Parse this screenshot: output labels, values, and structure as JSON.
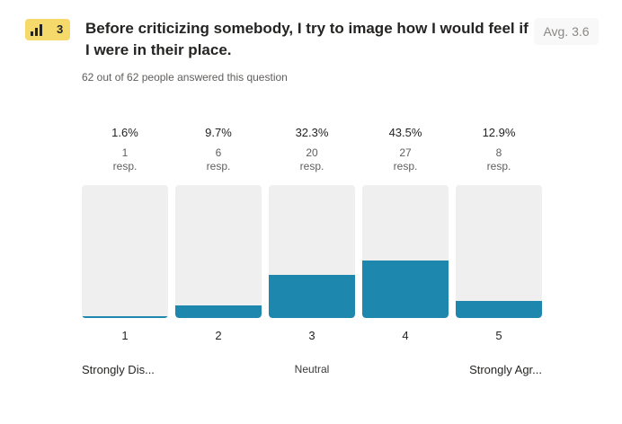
{
  "question": {
    "number": "3",
    "title": "Before criticizing somebody, I try to image how I would feel if I were in their place.",
    "average": "Avg. 3.6",
    "answered": "62 out of 62 people answered this question",
    "icon": "bar-chart-icon",
    "badge_color": "#f6d96b"
  },
  "chart_data": {
    "type": "bar",
    "categories": [
      "1",
      "2",
      "3",
      "4",
      "5"
    ],
    "values": [
      1,
      6,
      20,
      27,
      8
    ],
    "percent_labels": [
      "1.6%",
      "9.7%",
      "32.3%",
      "43.5%",
      "12.9%"
    ],
    "count_labels": [
      "1",
      "6",
      "20",
      "27",
      "8"
    ],
    "unit_label": "resp.",
    "ylim": [
      0,
      62
    ],
    "scale_labels": {
      "low": "Strongly Dis...",
      "mid": "Neutral",
      "high": "Strongly Agr..."
    },
    "bar_color": "#1d87ad",
    "track_color": "#efefef"
  }
}
